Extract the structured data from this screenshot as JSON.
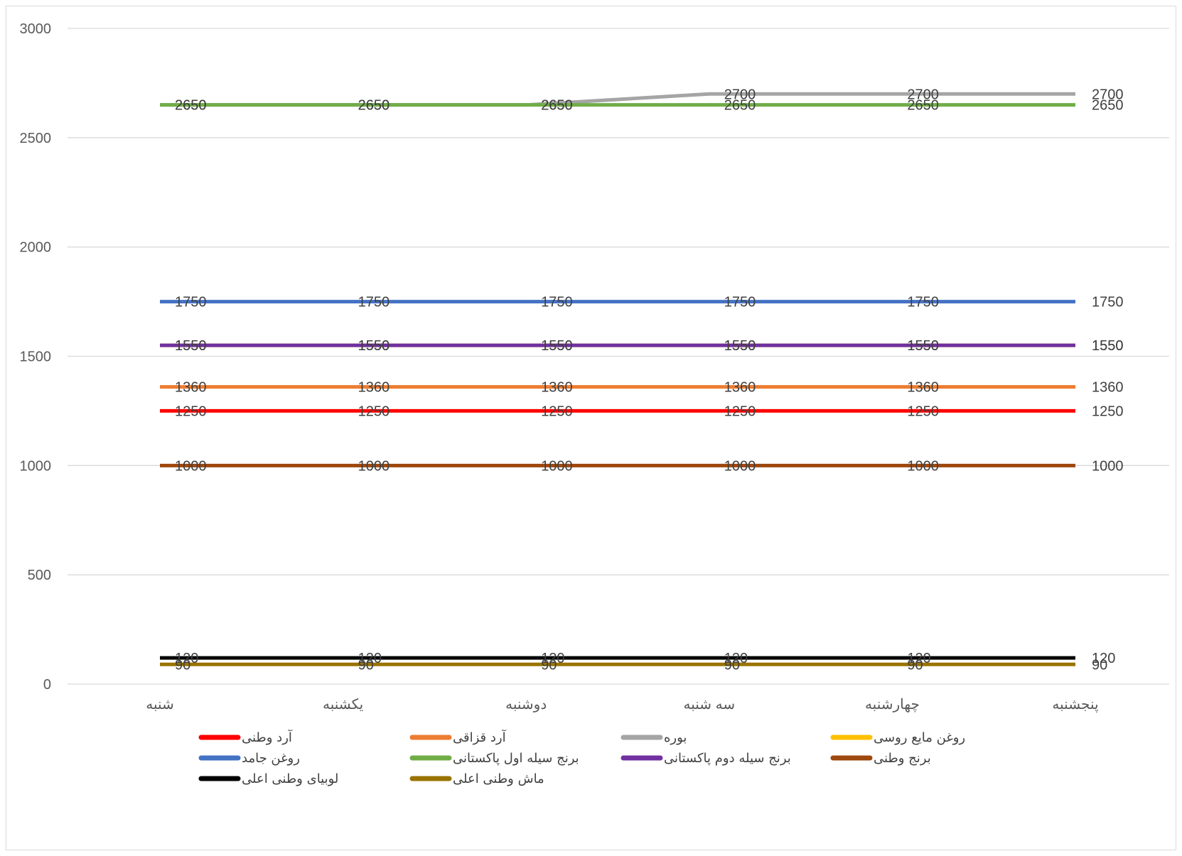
{
  "chart_data": {
    "type": "line",
    "categories": [
      "شنبه",
      "یکشنبه",
      "دوشنبه",
      "سه شنبه",
      "چهارشنبه",
      "پنجشنبه"
    ],
    "ylim": [
      0,
      3000
    ],
    "yticks": [
      0,
      500,
      1000,
      1500,
      2000,
      2500,
      3000
    ],
    "grid": true,
    "legend_position": "bottom",
    "data_labels": true,
    "series": [
      {
        "name": "آرد وطنی",
        "color": "#ff0000",
        "values": [
          1250,
          1250,
          1250,
          1250,
          1250,
          1250
        ]
      },
      {
        "name": "آرد قزاقی",
        "color": "#ed7d31",
        "values": [
          1360,
          1360,
          1360,
          1360,
          1360,
          1360
        ]
      },
      {
        "name": "بوره",
        "color": "#a5a5a5",
        "values": [
          2650,
          2650,
          2650,
          2700,
          2700,
          2700
        ]
      },
      {
        "name": "روغن مایع روسی",
        "color": "#ffc000",
        "values": [
          1550,
          1550,
          1550,
          1550,
          1550,
          1550
        ]
      },
      {
        "name": "روغن جامد",
        "color": "#4472c4",
        "values": [
          1750,
          1750,
          1750,
          1750,
          1750,
          1750
        ]
      },
      {
        "name": "برنج سیله اول پاکستانی",
        "color": "#70ad47",
        "values": [
          2650,
          2650,
          2650,
          2650,
          2650,
          2650
        ]
      },
      {
        "name": "برنج سیله دوم پاکستانی",
        "color": "#7030a0",
        "values": [
          1550,
          1550,
          1550,
          1550,
          1550,
          1550
        ]
      },
      {
        "name": "برنج وطنی",
        "color": "#9e480e",
        "values": [
          1000,
          1000,
          1000,
          1000,
          1000,
          1000
        ]
      },
      {
        "name": "لوبیای وطنی اعلی",
        "color": "#000000",
        "values": [
          120,
          120,
          120,
          120,
          120,
          120
        ]
      },
      {
        "name": "ماش وطنی اعلی",
        "color": "#997300",
        "values": [
          90,
          90,
          90,
          90,
          90,
          90
        ]
      }
    ]
  }
}
